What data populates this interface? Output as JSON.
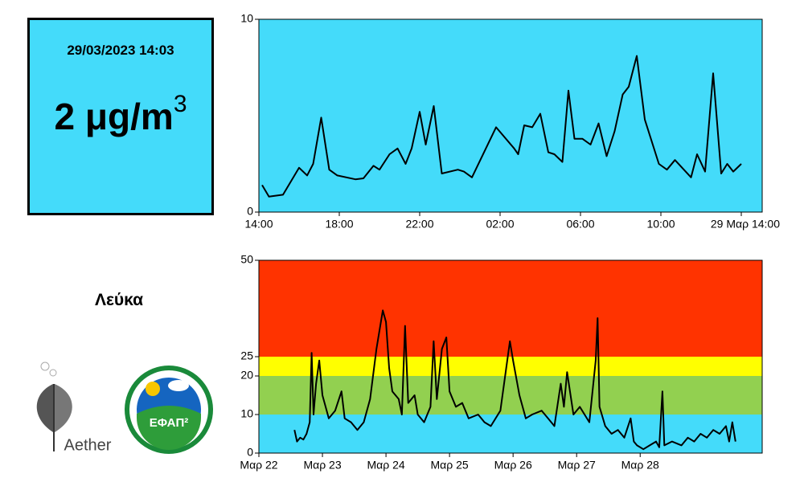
{
  "reading": {
    "timestamp": "29/03/2023 14:03",
    "value": 2,
    "unit": "μg/m",
    "unit_exponent": "3"
  },
  "location": "Λεύκα",
  "logos": {
    "aether": "Aether",
    "efap": "ΕΦΑΠ²"
  },
  "chart_data": [
    {
      "type": "line",
      "background": "#44dbfa",
      "color": "#000000",
      "xlim": [
        0,
        25.04
      ],
      "xticks": [
        {
          "value": 0,
          "label": "14:00"
        },
        {
          "value": 4,
          "label": "18:00"
        },
        {
          "value": 8,
          "label": "22:00"
        },
        {
          "value": 12,
          "label": "02:00"
        },
        {
          "value": 16,
          "label": "06:00"
        },
        {
          "value": 20,
          "label": "10:00"
        },
        {
          "value": 24,
          "label": "29 Μαρ 14:00"
        }
      ],
      "ylim": [
        0,
        10
      ],
      "yticks": [
        0,
        10
      ],
      "x": [
        0.16,
        0.5,
        1.2,
        2.0,
        2.4,
        2.7,
        3.1,
        3.5,
        3.9,
        4.8,
        5.2,
        5.7,
        6.0,
        6.5,
        6.9,
        7.3,
        7.6,
        8.0,
        8.3,
        8.7,
        9.1,
        9.9,
        10.2,
        10.6,
        11.8,
        12.7,
        12.9,
        13.2,
        13.6,
        14.0,
        14.4,
        14.7,
        15.1,
        15.4,
        15.7,
        16.1,
        16.5,
        16.9,
        17.3,
        17.7,
        18.1,
        18.4,
        18.8,
        19.2,
        19.9,
        20.3,
        20.7,
        21.5,
        21.8,
        22.2,
        22.6,
        23.0,
        23.3,
        23.6,
        24.0
      ],
      "series": [
        {
          "values": [
            1.4,
            0.8,
            0.9,
            2.3,
            1.9,
            2.5,
            4.9,
            2.2,
            1.9,
            1.7,
            1.75,
            2.4,
            2.2,
            3.0,
            3.3,
            2.5,
            3.3,
            5.2,
            3.5,
            5.5,
            2.0,
            2.2,
            2.1,
            1.8,
            4.4,
            3.3,
            3.0,
            4.5,
            4.4,
            5.1,
            3.1,
            3.0,
            2.6,
            6.3,
            3.8,
            3.8,
            3.5,
            4.6,
            2.9,
            4.2,
            6.1,
            6.5,
            8.1,
            4.8,
            2.5,
            2.2,
            2.7,
            1.8,
            3.0,
            2.1,
            7.2,
            2.0,
            2.5,
            2.1,
            2.5
          ]
        }
      ]
    },
    {
      "type": "line",
      "color": "#000000",
      "bands": [
        {
          "from": 0,
          "to": 10,
          "color": "#44dbfa"
        },
        {
          "from": 10,
          "to": 20,
          "color": "#92d050"
        },
        {
          "from": 20,
          "to": 25,
          "color": "#ffff00"
        },
        {
          "from": 25,
          "to": 50,
          "color": "#ff3300"
        }
      ],
      "xlim": [
        0,
        7.92
      ],
      "xticks": [
        {
          "value": 0,
          "label": "Μαρ 22"
        },
        {
          "value": 1,
          "label": "Μαρ 23"
        },
        {
          "value": 2,
          "label": "Μαρ 24"
        },
        {
          "value": 3,
          "label": "Μαρ 25"
        },
        {
          "value": 4,
          "label": "Μαρ 26"
        },
        {
          "value": 5,
          "label": "Μαρ 27"
        },
        {
          "value": 6,
          "label": "Μαρ 28"
        }
      ],
      "ylim": [
        0,
        50
      ],
      "yticks": [
        0,
        10,
        20,
        25,
        50
      ],
      "x": [
        0.56,
        0.6,
        0.65,
        0.7,
        0.75,
        0.8,
        0.83,
        0.86,
        0.9,
        0.95,
        1.0,
        1.05,
        1.1,
        1.2,
        1.3,
        1.35,
        1.45,
        1.55,
        1.65,
        1.75,
        1.85,
        1.95,
        2.0,
        2.05,
        2.1,
        2.2,
        2.25,
        2.3,
        2.35,
        2.45,
        2.5,
        2.6,
        2.7,
        2.75,
        2.8,
        2.88,
        2.95,
        3.0,
        3.1,
        3.2,
        3.3,
        3.45,
        3.55,
        3.65,
        3.8,
        3.95,
        4.0,
        4.1,
        4.2,
        4.3,
        4.45,
        4.55,
        4.65,
        4.75,
        4.8,
        4.85,
        4.95,
        5.05,
        5.2,
        5.3,
        5.33,
        5.36,
        5.45,
        5.55,
        5.65,
        5.75,
        5.85,
        5.9,
        5.95,
        6.05,
        6.15,
        6.25,
        6.3,
        6.35,
        6.38,
        6.5,
        6.65,
        6.75,
        6.85,
        6.95,
        7.05,
        7.15,
        7.25,
        7.35,
        7.4,
        7.45,
        7.5
      ],
      "series": [
        {
          "values": [
            6,
            3,
            4,
            3.5,
            5,
            8,
            26,
            10,
            18,
            24,
            15,
            12,
            9,
            11,
            16,
            9,
            8,
            6,
            8,
            14,
            27,
            37,
            34,
            22,
            16,
            14,
            10,
            33,
            13,
            15,
            10,
            8,
            12,
            29,
            14,
            27,
            30,
            16,
            12,
            13,
            9,
            10,
            8,
            7,
            11,
            29,
            24,
            15,
            9,
            10,
            11,
            9,
            7,
            18,
            12,
            21,
            10,
            12,
            8,
            24,
            35,
            12,
            7,
            5,
            6,
            4,
            9,
            3,
            2,
            1,
            2,
            3,
            1.5,
            16,
            2,
            3,
            2,
            4,
            3,
            5,
            4,
            6,
            5,
            7,
            3,
            8,
            3
          ]
        }
      ]
    }
  ]
}
